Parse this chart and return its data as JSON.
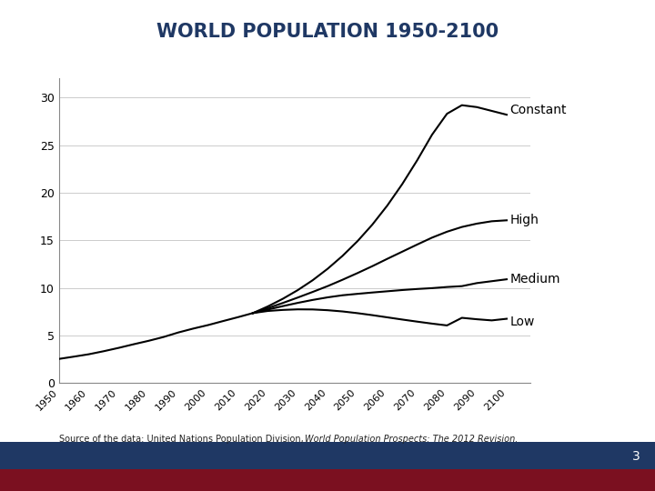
{
  "title": "WORLD POPULATION 1950-2100",
  "title_color": "#1F3864",
  "title_fontsize": 15,
  "source_text": "Source of the data: United Nations Population Division, ",
  "source_italic": "World Population Prospects: The 2012 Revision.",
  "xlim": [
    1950,
    2108
  ],
  "ylim": [
    0,
    32
  ],
  "yticks": [
    0,
    5,
    10,
    15,
    20,
    25,
    30
  ],
  "xticks": [
    1950,
    1960,
    1970,
    1980,
    1990,
    2000,
    2010,
    2020,
    2030,
    2040,
    2050,
    2060,
    2070,
    2080,
    2090,
    2100
  ],
  "line_color": "#000000",
  "background_color": "#ffffff",
  "footer_left_color": "#1F3864",
  "footer_right_color": "#7B1020",
  "page_number": "3",
  "years_historical": [
    1950,
    1955,
    1960,
    1965,
    1970,
    1975,
    1980,
    1985,
    1990,
    1995,
    2000,
    2005,
    2010,
    2015
  ],
  "pop_historical": [
    2.53,
    2.77,
    3.02,
    3.34,
    3.69,
    4.07,
    4.43,
    4.83,
    5.31,
    5.72,
    6.09,
    6.51,
    6.92,
    7.35
  ],
  "years_projection": [
    2015,
    2020,
    2025,
    2030,
    2035,
    2040,
    2045,
    2050,
    2055,
    2060,
    2065,
    2070,
    2075,
    2080,
    2085,
    2090,
    2095,
    2100
  ],
  "pop_low": [
    7.35,
    7.57,
    7.68,
    7.74,
    7.73,
    7.65,
    7.52,
    7.34,
    7.13,
    6.9,
    6.67,
    6.45,
    6.24,
    6.05,
    6.85,
    6.7,
    6.58,
    6.75
  ],
  "pop_medium": [
    7.35,
    7.72,
    8.08,
    8.42,
    8.73,
    9.0,
    9.22,
    9.37,
    9.51,
    9.64,
    9.77,
    9.88,
    9.97,
    10.09,
    10.18,
    10.5,
    10.7,
    10.9
  ],
  "pop_high": [
    7.35,
    7.87,
    8.41,
    8.98,
    9.57,
    10.18,
    10.85,
    11.55,
    12.28,
    13.05,
    13.8,
    14.55,
    15.28,
    15.9,
    16.4,
    16.75,
    17.0,
    17.1
  ],
  "pop_constant": [
    7.35,
    8.05,
    8.85,
    9.76,
    10.8,
    12.0,
    13.36,
    14.9,
    16.65,
    18.65,
    20.9,
    23.4,
    26.1,
    28.3,
    29.2,
    29.0,
    28.6,
    28.2
  ],
  "label_constant": "Constant",
  "label_high": "High",
  "label_medium": "Medium",
  "label_low": "Low",
  "label_fontsize": 10
}
